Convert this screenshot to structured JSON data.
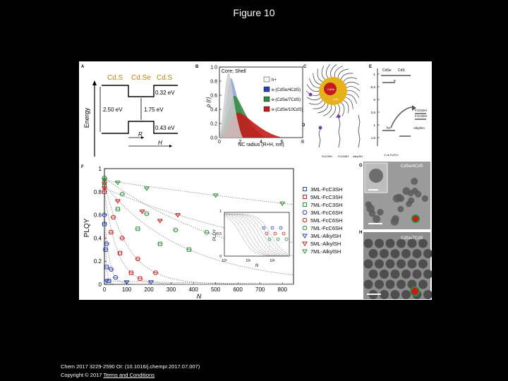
{
  "slide": {
    "title": "Figure 10"
  },
  "citation": {
    "line1": "Chem 2017 3229-2590 OI: (10.1016/j.chempr.2017.07.007)",
    "copyright": "Copyright © 2017",
    "terms": "Terms and Conditions"
  },
  "panels": {
    "A": {
      "letter": "A",
      "labels": [
        "Cd.S",
        "Cd.Se",
        "Cd.S"
      ],
      "ylabel": "Energy",
      "e_top": "0.32 eV",
      "e_left": "2.50 eV",
      "e_mid": "1.75 eV",
      "e_bot": "0.43 eV",
      "R": "R",
      "H": "H"
    },
    "B": {
      "letter": "B",
      "legend_title": "Core; Shell",
      "legend": [
        "h+",
        "e-(CdSe/4CdS)",
        "e-(CdSe/7CdS)",
        "e-(CdSe/10CdS)"
      ],
      "legend_colors": [
        "#f5f5f5",
        "#2b3fb0",
        "#2e8a3a",
        "#c41c1c"
      ],
      "ylabel": "ρ (r)",
      "xlabel": "NC radius (R+H, nm)",
      "yticks": [
        "1.0",
        "0.8",
        "0.6",
        "0.4",
        "0.2",
        "0.0"
      ],
      "xticks": [
        "0",
        "2",
        "4",
        "6",
        "8"
      ]
    },
    "C": {
      "letter": "C",
      "core": "CdSe",
      "shell": "CdS"
    },
    "D": {
      "letter": "D",
      "labels": [
        "FcC3SH",
        "FcC6SH",
        "AlkylSH"
      ]
    },
    "E": {
      "letter": "E",
      "labels": [
        "CdSe",
        "CdS"
      ],
      "e": "e",
      "h": "h+",
      "right_labels": [
        "FcC6SH",
        "FcC3SH",
        "AlkylSH"
      ],
      "yticks": [
        "-1",
        "-0.5",
        "0",
        "0.5",
        "1",
        "1.5"
      ],
      "xlabel": "V vs Fc/Fc+"
    },
    "F": {
      "letter": "F",
      "ylabel": "PLQY",
      "xlabel": "N",
      "yticks": [
        "1",
        "0.8",
        "0.6",
        "0.4",
        "0.2",
        "0"
      ],
      "xticks": [
        "0",
        "100",
        "200",
        "300",
        "400",
        "500",
        "600",
        "700",
        "800"
      ],
      "inset_ylabel": "PLQY",
      "inset_xlabel": "N",
      "inset_yticks": [
        "1",
        "0.5",
        "0"
      ],
      "inset_xticks": [
        "10⁰",
        "10¹",
        "10²"
      ]
    },
    "G": {
      "letter": "G",
      "label": "CdSe/4CdS"
    },
    "H": {
      "letter": "H",
      "label": "CdSe/7CdS"
    }
  },
  "chart_data": {
    "type": "scatter",
    "xlabel": "N",
    "ylabel": "PLQY",
    "xlim": [
      0,
      850
    ],
    "ylim": [
      0,
      1
    ],
    "series": [
      {
        "name": "3ML-FcC3SH",
        "color": "#2b3fb0",
        "marker": "square",
        "x": [
          0,
          5,
          10,
          20
        ],
        "y": [
          0.52,
          0.3,
          0.15,
          0.03
        ]
      },
      {
        "name": "5ML-FcC3SH",
        "color": "#c41c1c",
        "marker": "square",
        "x": [
          0,
          30,
          70,
          120,
          160
        ],
        "y": [
          0.8,
          0.45,
          0.27,
          0.1,
          0.05
        ]
      },
      {
        "name": "7ML-FcC3SH",
        "color": "#2e8a3a",
        "marker": "square",
        "x": [
          0,
          60,
          150,
          250,
          380
        ],
        "y": [
          0.86,
          0.65,
          0.48,
          0.35,
          0.3
        ]
      },
      {
        "name": "3ML-FcC6SH",
        "color": "#2b3fb0",
        "marker": "circle",
        "x": [
          0,
          10,
          30,
          50
        ],
        "y": [
          0.6,
          0.35,
          0.13,
          0.06
        ]
      },
      {
        "name": "5ML-FcC6SH",
        "color": "#c41c1c",
        "marker": "circle",
        "x": [
          0,
          40,
          80,
          150,
          230
        ],
        "y": [
          0.88,
          0.58,
          0.4,
          0.22,
          0.1
        ]
      },
      {
        "name": "7ML-FcC6SH",
        "color": "#2e8a3a",
        "marker": "circle",
        "x": [
          0,
          80,
          190,
          320,
          460
        ],
        "y": [
          0.92,
          0.78,
          0.61,
          0.47,
          0.45
        ]
      },
      {
        "name": "3ML-AlkylSH",
        "color": "#2b3fb0",
        "marker": "triangle",
        "x": [
          10,
          100,
          210
        ],
        "y": [
          0.03,
          0.02,
          0.02
        ]
      },
      {
        "name": "5ML-AlkylSH",
        "color": "#c41c1c",
        "marker": "triangle",
        "x": [
          0,
          60,
          170,
          250,
          330
        ],
        "y": [
          0.83,
          0.72,
          0.63,
          0.55,
          0.6
        ]
      },
      {
        "name": "7ML-AlkylSH",
        "color": "#2e8a3a",
        "marker": "triangle",
        "x": [
          0,
          60,
          190,
          500,
          800
        ],
        "y": [
          0.9,
          0.88,
          0.83,
          0.77,
          0.7
        ]
      }
    ]
  }
}
